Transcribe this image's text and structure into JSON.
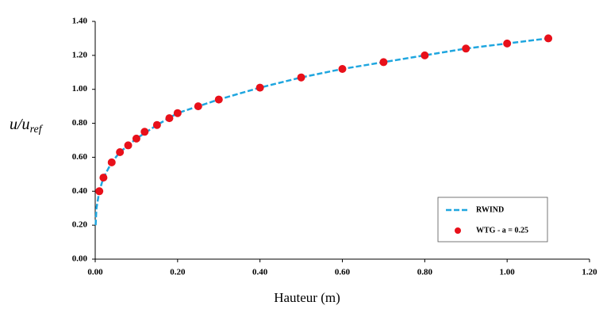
{
  "chart_data": {
    "type": "scatter-line",
    "x_label": "Hauteur (m)",
    "y_label": {
      "text": "u/u",
      "subscript": "ref"
    },
    "xlim": [
      0,
      1.2
    ],
    "xticks": [
      {
        "value": 0,
        "label": "0.00"
      },
      {
        "value": 0.2,
        "label": "0.20"
      },
      {
        "value": 0.4,
        "label": "0.40"
      },
      {
        "value": 0.6,
        "label": "0.60"
      },
      {
        "value": 0.8,
        "label": "0.80"
      },
      {
        "value": 1.0,
        "label": "1.00"
      },
      {
        "value": 1.2,
        "label": "1.20"
      }
    ],
    "ylim": [
      0,
      1.4
    ],
    "yticks": [
      {
        "value": 0,
        "label": "0.00"
      },
      {
        "value": 0.2,
        "label": "0.20"
      },
      {
        "value": 0.4,
        "label": "0.40"
      },
      {
        "value": 0.6,
        "label": "0.60"
      },
      {
        "value": 0.8,
        "label": "0.80"
      },
      {
        "value": 1.0,
        "label": "1.00"
      },
      {
        "value": 1.2,
        "label": "1.20"
      },
      {
        "value": 1.4,
        "label": "1.40"
      }
    ],
    "grid": false,
    "legend": "lower right",
    "series": [
      {
        "name": "RWIND",
        "kind": "line",
        "color": "#1fa6df",
        "x": [
          0.001,
          0.003,
          0.01,
          0.02,
          0.04,
          0.06,
          0.1,
          0.15,
          0.2,
          0.3,
          0.4,
          0.5,
          0.6,
          0.7,
          0.8,
          0.9,
          1.0,
          1.1
        ],
        "values": [
          0.2,
          0.3,
          0.4,
          0.48,
          0.57,
          0.63,
          0.71,
          0.79,
          0.86,
          0.94,
          1.01,
          1.07,
          1.12,
          1.16,
          1.2,
          1.24,
          1.27,
          1.3
        ]
      },
      {
        "name": "WTG - a = 0.25",
        "kind": "markers",
        "color": "#e8101a",
        "x": [
          0.01,
          0.02,
          0.04,
          0.06,
          0.08,
          0.1,
          0.12,
          0.15,
          0.18,
          0.2,
          0.25,
          0.3,
          0.4,
          0.5,
          0.6,
          0.7,
          0.8,
          0.9,
          1.0,
          1.1
        ],
        "values": [
          0.4,
          0.48,
          0.57,
          0.63,
          0.67,
          0.71,
          0.75,
          0.79,
          0.83,
          0.86,
          0.9,
          0.94,
          1.01,
          1.07,
          1.12,
          1.16,
          1.2,
          1.24,
          1.27,
          1.3
        ]
      }
    ]
  }
}
